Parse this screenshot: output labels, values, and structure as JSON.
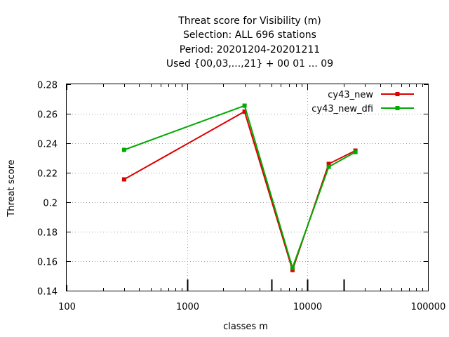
{
  "chart_data": {
    "type": "line",
    "title_lines": [
      "Threat score  for Visibility (m)",
      "Selection: ALL    696 stations",
      "Period: 20201204-20201211",
      "Used {00,03,...,21} + 00 01 ... 09"
    ],
    "xlabel": "classes m",
    "ylabel": "Threat score",
    "x_scale": "log",
    "xlim": [
      100,
      100000
    ],
    "ylim": [
      0.14,
      0.28
    ],
    "x_ticks": [
      100,
      1000,
      10000,
      100000
    ],
    "x_tick_labels": [
      "100",
      "1000",
      "10000",
      "100000"
    ],
    "y_ticks": [
      0.14,
      0.16,
      0.18,
      0.2,
      0.22,
      0.24,
      0.26,
      0.28
    ],
    "y_tick_labels": [
      "0.14",
      "0.16",
      "0.18",
      "0.2",
      "0.22",
      "0.24",
      "0.26",
      "0.28"
    ],
    "grid": true,
    "legend_position": "top-right",
    "class_marks": [
      1000,
      5000,
      10000,
      20000
    ],
    "x": [
      300,
      3000,
      7500,
      15000,
      25000
    ],
    "series": [
      {
        "name": "cy43_new",
        "color": "#dd0000",
        "values": [
          0.2155,
          0.2615,
          0.154,
          0.226,
          0.235
        ]
      },
      {
        "name": "cy43_new_dfi",
        "color": "#00aa00",
        "values": [
          0.2355,
          0.2655,
          0.1555,
          0.224,
          0.234
        ]
      }
    ]
  }
}
